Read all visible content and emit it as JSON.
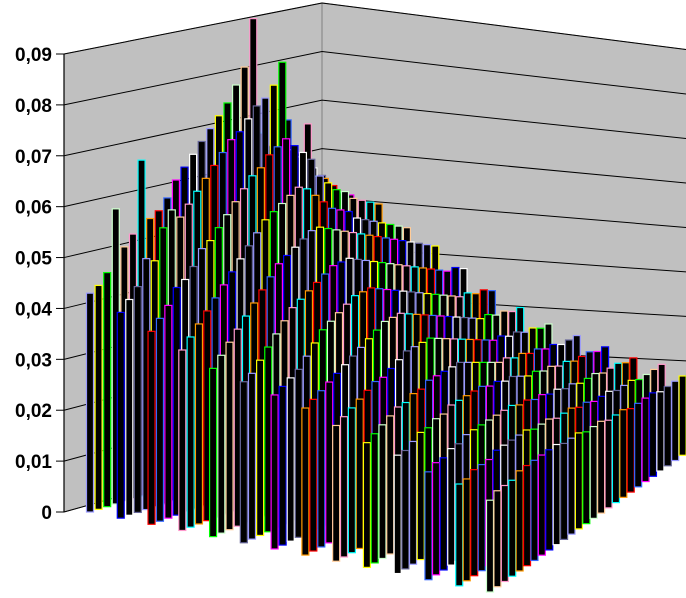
{
  "chart_data": {
    "type": "bar3d",
    "title": "",
    "xlabel": "",
    "ylabel": "",
    "zlim": [
      0,
      0.09
    ],
    "z_ticks": [
      "0",
      "0,01",
      "0,02",
      "0,03",
      "0,04",
      "0,05",
      "0,06",
      "0,07",
      "0,08",
      "0,09"
    ],
    "grid": true,
    "legend": "none",
    "wall_color": "#c0c0c0",
    "bar_color": "#000000",
    "outline_colors": [
      "#9999ff",
      "#ff99cc",
      "#ff00ff",
      "#ffff00",
      "#00ffff",
      "#0000ff",
      "#00ff00",
      "#ff9900",
      "#ffffff",
      "#ccffcc",
      "#ff0000",
      "#666699",
      "#ffcc99",
      "#3366ff"
    ],
    "grid_size": {
      "rows": 14,
      "cols": 28
    },
    "series_profile_back_to_front": [
      {
        "row": 1,
        "values": [
          0.043,
          0.044,
          0.046,
          0.058,
          0.05,
          0.052,
          0.066,
          0.054,
          0.055,
          0.057,
          0.06,
          0.062,
          0.064,
          0.066,
          0.068,
          0.07,
          0.072,
          0.075,
          0.078,
          0.087,
          0.064,
          0.061,
          0.06,
          0.065,
          0.058,
          0.056,
          0.054,
          0.052
        ]
      },
      {
        "row": 2,
        "values": [
          0.041,
          0.043,
          0.045,
          0.05,
          0.049,
          0.055,
          0.058,
          0.056,
          0.058,
          0.06,
          0.062,
          0.064,
          0.066,
          0.068,
          0.069,
          0.071,
          0.073,
          0.074,
          0.076,
          0.08,
          0.062,
          0.06,
          0.066,
          0.055,
          0.054,
          0.052,
          0.05,
          0.049
        ]
      },
      {
        "row": 3,
        "values": [
          0.039,
          0.041,
          0.043,
          0.046,
          0.047,
          0.049,
          0.052,
          0.053,
          0.055,
          0.057,
          0.059,
          0.061,
          0.063,
          0.064,
          0.066,
          0.067,
          0.068,
          0.066,
          0.064,
          0.062,
          0.058,
          0.056,
          0.054,
          0.053,
          0.051,
          0.05,
          0.049,
          0.048
        ]
      },
      {
        "row": 4,
        "values": [
          0.037,
          0.039,
          0.041,
          0.043,
          0.045,
          0.047,
          0.049,
          0.051,
          0.053,
          0.055,
          0.057,
          0.058,
          0.059,
          0.06,
          0.061,
          0.06,
          0.058,
          0.056,
          0.054,
          0.053,
          0.052,
          0.05,
          0.049,
          0.048,
          0.047,
          0.046,
          0.045,
          0.044
        ]
      },
      {
        "row": 5,
        "values": [
          0.035,
          0.037,
          0.039,
          0.041,
          0.043,
          0.045,
          0.047,
          0.049,
          0.051,
          0.052,
          0.053,
          0.054,
          0.055,
          0.055,
          0.054,
          0.053,
          0.052,
          0.051,
          0.05,
          0.049,
          0.048,
          0.047,
          0.046,
          0.045,
          0.044,
          0.043,
          0.042,
          0.041
        ]
      },
      {
        "row": 6,
        "values": [
          0.034,
          0.035,
          0.037,
          0.039,
          0.041,
          0.043,
          0.045,
          0.046,
          0.047,
          0.048,
          0.049,
          0.05,
          0.05,
          0.05,
          0.049,
          0.048,
          0.047,
          0.046,
          0.045,
          0.044,
          0.043,
          0.042,
          0.041,
          0.04,
          0.039,
          0.038,
          0.038,
          0.037
        ]
      },
      {
        "row": 7,
        "values": [
          0.033,
          0.034,
          0.035,
          0.036,
          0.038,
          0.04,
          0.042,
          0.043,
          0.044,
          0.045,
          0.046,
          0.046,
          0.046,
          0.045,
          0.044,
          0.043,
          0.042,
          0.041,
          0.04,
          0.039,
          0.038,
          0.037,
          0.036,
          0.035,
          0.035,
          0.034,
          0.034,
          0.033
        ]
      },
      {
        "row": 8,
        "values": [
          0.032,
          0.033,
          0.034,
          0.035,
          0.036,
          0.037,
          0.038,
          0.039,
          0.04,
          0.041,
          0.042,
          0.042,
          0.042,
          0.041,
          0.04,
          0.039,
          0.038,
          0.037,
          0.036,
          0.035,
          0.034,
          0.033,
          0.032,
          0.032,
          0.031,
          0.031,
          0.03,
          0.03
        ]
      },
      {
        "row": 9,
        "values": [
          0.03,
          0.031,
          0.032,
          0.033,
          0.034,
          0.035,
          0.035,
          0.036,
          0.037,
          0.038,
          0.038,
          0.038,
          0.038,
          0.037,
          0.036,
          0.035,
          0.034,
          0.033,
          0.032,
          0.031,
          0.03,
          0.03,
          0.029,
          0.029,
          0.028,
          0.028,
          0.027,
          0.027
        ]
      },
      {
        "row": 10,
        "values": [
          0.028,
          0.029,
          0.03,
          0.031,
          0.032,
          0.032,
          0.033,
          0.033,
          0.034,
          0.034,
          0.034,
          0.034,
          0.034,
          0.033,
          0.032,
          0.031,
          0.03,
          0.029,
          0.029,
          0.028,
          0.028,
          0.027,
          0.027,
          0.026,
          0.026,
          0.025,
          0.025,
          0.025
        ]
      },
      {
        "row": 11,
        "values": [
          0.027,
          0.027,
          0.028,
          0.029,
          0.029,
          0.03,
          0.03,
          0.031,
          0.031,
          0.031,
          0.031,
          0.031,
          0.03,
          0.03,
          0.029,
          0.029,
          0.028,
          0.027,
          0.027,
          0.026,
          0.026,
          0.025,
          0.025,
          0.024,
          0.024,
          0.024,
          0.023,
          0.023
        ]
      },
      {
        "row": 12,
        "values": [
          0.025,
          0.026,
          0.026,
          0.027,
          0.027,
          0.028,
          0.028,
          0.028,
          0.028,
          0.028,
          0.028,
          0.028,
          0.027,
          0.027,
          0.026,
          0.026,
          0.025,
          0.025,
          0.024,
          0.024,
          0.023,
          0.023,
          0.023,
          0.022,
          0.022,
          0.022,
          0.021,
          0.021
        ]
      },
      {
        "row": 13,
        "values": [
          0.024,
          0.024,
          0.025,
          0.025,
          0.025,
          0.026,
          0.026,
          0.026,
          0.026,
          0.026,
          0.025,
          0.025,
          0.025,
          0.024,
          0.024,
          0.024,
          0.023,
          0.023,
          0.022,
          0.022,
          0.022,
          0.021,
          0.021,
          0.021,
          0.02,
          0.02,
          0.02,
          0.02
        ]
      },
      {
        "row": 14,
        "values": [
          0.022,
          0.023,
          0.023,
          0.023,
          0.024,
          0.024,
          0.024,
          0.024,
          0.024,
          0.024,
          0.023,
          0.023,
          0.023,
          0.022,
          0.022,
          0.022,
          0.021,
          0.021,
          0.021,
          0.02,
          0.02,
          0.02,
          0.02,
          0.019,
          0.019,
          0.019,
          0.019,
          0.018
        ]
      }
    ]
  }
}
